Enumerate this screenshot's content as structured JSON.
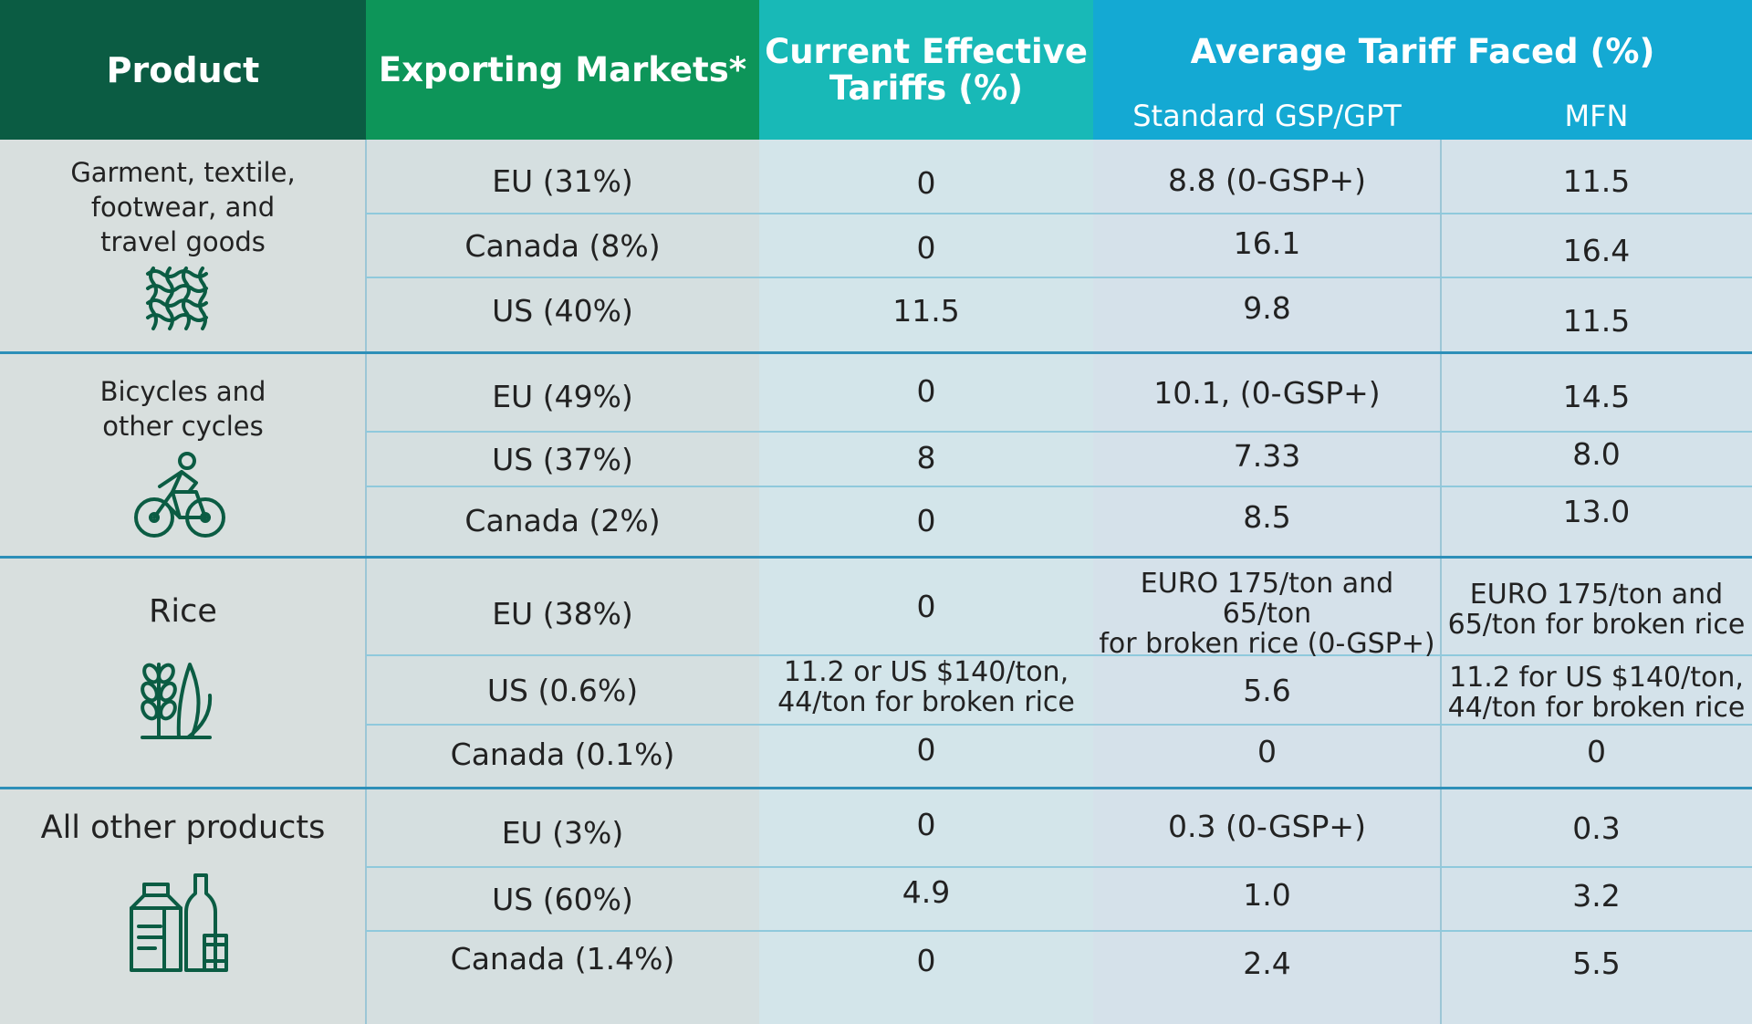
{
  "header": {
    "product": "Product",
    "exporting_markets": "Exporting Markets*",
    "current_effective_line1": "Current Effective",
    "current_effective_line2": "Tariffs (%)",
    "average_tariff_faced": "Average Tariff Faced (%)",
    "standard_gsp": "Standard GSP/GPT",
    "mfn": "MFN"
  },
  "groups": [
    {
      "product_lines": [
        "Garment, textile,",
        "footwear, and",
        "travel goods"
      ],
      "icon": "textile-weave-icon",
      "rows": [
        {
          "market": "EU (31%)",
          "current": "0",
          "gsp": "8.8 (0-GSP+)",
          "mfn": "11.5"
        },
        {
          "market": "Canada (8%)",
          "current": "0",
          "gsp": "16.1",
          "mfn": "16.4"
        },
        {
          "market": "US (40%)",
          "current": "11.5",
          "gsp": "9.8",
          "mfn": "11.5"
        }
      ]
    },
    {
      "product_lines": [
        "Bicycles and",
        "other cycles"
      ],
      "icon": "cyclist-icon",
      "rows": [
        {
          "market": "EU (49%)",
          "current": "0",
          "gsp": "10.1, (0-GSP+)",
          "mfn": "14.5"
        },
        {
          "market": "US (37%)",
          "current": "8",
          "gsp": "7.33",
          "mfn": "8.0"
        },
        {
          "market": "Canada (2%)",
          "current": "0",
          "gsp": "8.5",
          "mfn": "13.0"
        }
      ]
    },
    {
      "product_lines": [
        "Rice"
      ],
      "icon": "rice-plant-icon",
      "rows": [
        {
          "market": "EU (38%)",
          "current": "0",
          "gsp_lines": [
            "EURO 175/ton and 65/ton",
            "for broken rice (0-GSP+)"
          ],
          "mfn_lines": [
            "EURO 175/ton and",
            "65/ton for broken rice"
          ]
        },
        {
          "market": "US (0.6%)",
          "current_lines": [
            "11.2 or US $140/ton,",
            "44/ton for broken rice"
          ],
          "gsp": "5.6",
          "mfn_lines": [
            "11.2 for US $140/ton,",
            "44/ton for broken rice"
          ]
        },
        {
          "market": "Canada (0.1%)",
          "current": "0",
          "gsp": "0",
          "mfn": "0"
        }
      ]
    },
    {
      "product_lines": [
        "All other products"
      ],
      "icon": "packaged-goods-icon",
      "rows": [
        {
          "market": "EU (3%)",
          "current": "0",
          "gsp": "0.3 (0-GSP+)",
          "mfn": "0.3"
        },
        {
          "market": "US (60%)",
          "current": "4.9",
          "gsp": "1.0",
          "mfn": "3.2"
        },
        {
          "market": "Canada (1.4%)",
          "current": "0",
          "gsp": "2.4",
          "mfn": "5.5"
        }
      ]
    }
  ]
}
